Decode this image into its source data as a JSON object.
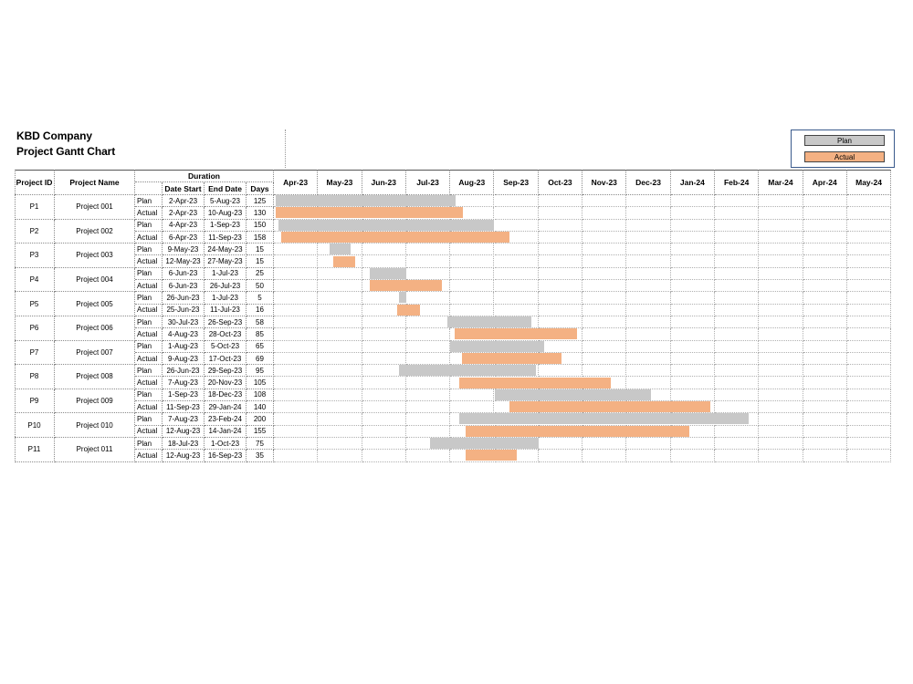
{
  "company": "KBD Company",
  "chart_title": "Project Gantt Chart",
  "legend": {
    "plan": "Plan",
    "actual": "Actual"
  },
  "colors": {
    "plan": "#c8c8c8",
    "actual": "#f4b183"
  },
  "headers": {
    "project_id": "Project ID",
    "project_name": "Project Name",
    "duration": "Duration",
    "date_start": "Date Start",
    "end_date": "End Date",
    "days": "Days"
  },
  "chart_data": {
    "type": "gantt",
    "title": "Project Gantt Chart",
    "months": [
      "Apr-23",
      "May-23",
      "Jun-23",
      "Jul-23",
      "Aug-23",
      "Sep-23",
      "Oct-23",
      "Nov-23",
      "Dec-23",
      "Jan-24",
      "Feb-24",
      "Mar-24",
      "Apr-24",
      "May-24"
    ],
    "timeline_start": "2023-04-01",
    "projects": [
      {
        "id": "P1",
        "name": "Project 001",
        "plan": {
          "label": "Plan",
          "start": "2-Apr-23",
          "end": "5-Aug-23",
          "days": 125,
          "start_iso": "2023-04-02",
          "end_iso": "2023-08-05"
        },
        "actual": {
          "label": "Actual",
          "start": "2-Apr-23",
          "end": "10-Aug-23",
          "days": 130,
          "start_iso": "2023-04-02",
          "end_iso": "2023-08-10"
        }
      },
      {
        "id": "P2",
        "name": "Project 002",
        "plan": {
          "label": "Plan",
          "start": "4-Apr-23",
          "end": "1-Sep-23",
          "days": 150,
          "start_iso": "2023-04-04",
          "end_iso": "2023-09-01"
        },
        "actual": {
          "label": "Actual",
          "start": "6-Apr-23",
          "end": "11-Sep-23",
          "days": 158,
          "start_iso": "2023-04-06",
          "end_iso": "2023-09-11"
        }
      },
      {
        "id": "P3",
        "name": "Project 003",
        "plan": {
          "label": "Plan",
          "start": "9-May-23",
          "end": "24-May-23",
          "days": 15,
          "start_iso": "2023-05-09",
          "end_iso": "2023-05-24"
        },
        "actual": {
          "label": "Actual",
          "start": "12-May-23",
          "end": "27-May-23",
          "days": 15,
          "start_iso": "2023-05-12",
          "end_iso": "2023-05-27"
        }
      },
      {
        "id": "P4",
        "name": "Project 004",
        "plan": {
          "label": "Plan",
          "start": "6-Jun-23",
          "end": "1-Jul-23",
          "days": 25,
          "start_iso": "2023-06-06",
          "end_iso": "2023-07-01"
        },
        "actual": {
          "label": "Actual",
          "start": "6-Jun-23",
          "end": "26-Jul-23",
          "days": 50,
          "start_iso": "2023-06-06",
          "end_iso": "2023-07-26"
        }
      },
      {
        "id": "P5",
        "name": "Project 005",
        "plan": {
          "label": "Plan",
          "start": "26-Jun-23",
          "end": "1-Jul-23",
          "days": 5,
          "start_iso": "2023-06-26",
          "end_iso": "2023-07-01"
        },
        "actual": {
          "label": "Actual",
          "start": "25-Jun-23",
          "end": "11-Jul-23",
          "days": 16,
          "start_iso": "2023-06-25",
          "end_iso": "2023-07-11"
        }
      },
      {
        "id": "P6",
        "name": "Project 006",
        "plan": {
          "label": "Plan",
          "start": "30-Jul-23",
          "end": "26-Sep-23",
          "days": 58,
          "start_iso": "2023-07-30",
          "end_iso": "2023-09-26"
        },
        "actual": {
          "label": "Actual",
          "start": "4-Aug-23",
          "end": "28-Oct-23",
          "days": 85,
          "start_iso": "2023-08-04",
          "end_iso": "2023-10-28"
        }
      },
      {
        "id": "P7",
        "name": "Project 007",
        "plan": {
          "label": "Plan",
          "start": "1-Aug-23",
          "end": "5-Oct-23",
          "days": 65,
          "start_iso": "2023-08-01",
          "end_iso": "2023-10-05"
        },
        "actual": {
          "label": "Actual",
          "start": "9-Aug-23",
          "end": "17-Oct-23",
          "days": 69,
          "start_iso": "2023-08-09",
          "end_iso": "2023-10-17"
        }
      },
      {
        "id": "P8",
        "name": "Project 008",
        "plan": {
          "label": "Plan",
          "start": "26-Jun-23",
          "end": "29-Sep-23",
          "days": 95,
          "start_iso": "2023-06-26",
          "end_iso": "2023-09-29"
        },
        "actual": {
          "label": "Actual",
          "start": "7-Aug-23",
          "end": "20-Nov-23",
          "days": 105,
          "start_iso": "2023-08-07",
          "end_iso": "2023-11-20"
        }
      },
      {
        "id": "P9",
        "name": "Project 009",
        "plan": {
          "label": "Plan",
          "start": "1-Sep-23",
          "end": "18-Dec-23",
          "days": 108,
          "start_iso": "2023-09-01",
          "end_iso": "2023-12-18"
        },
        "actual": {
          "label": "Actual",
          "start": "11-Sep-23",
          "end": "29-Jan-24",
          "days": 140,
          "start_iso": "2023-09-11",
          "end_iso": "2024-01-29"
        }
      },
      {
        "id": "P10",
        "name": "Project 010",
        "plan": {
          "label": "Plan",
          "start": "7-Aug-23",
          "end": "23-Feb-24",
          "days": 200,
          "start_iso": "2023-08-07",
          "end_iso": "2024-02-23"
        },
        "actual": {
          "label": "Actual",
          "start": "12-Aug-23",
          "end": "14-Jan-24",
          "days": 155,
          "start_iso": "2023-08-12",
          "end_iso": "2024-01-14"
        }
      },
      {
        "id": "P11",
        "name": "Project 011",
        "plan": {
          "label": "Plan",
          "start": "18-Jul-23",
          "end": "1-Oct-23",
          "days": 75,
          "start_iso": "2023-07-18",
          "end_iso": "2023-10-01"
        },
        "actual": {
          "label": "Actual",
          "start": "12-Aug-23",
          "end": "16-Sep-23",
          "days": 35,
          "start_iso": "2023-08-12",
          "end_iso": "2023-09-16"
        }
      }
    ]
  }
}
